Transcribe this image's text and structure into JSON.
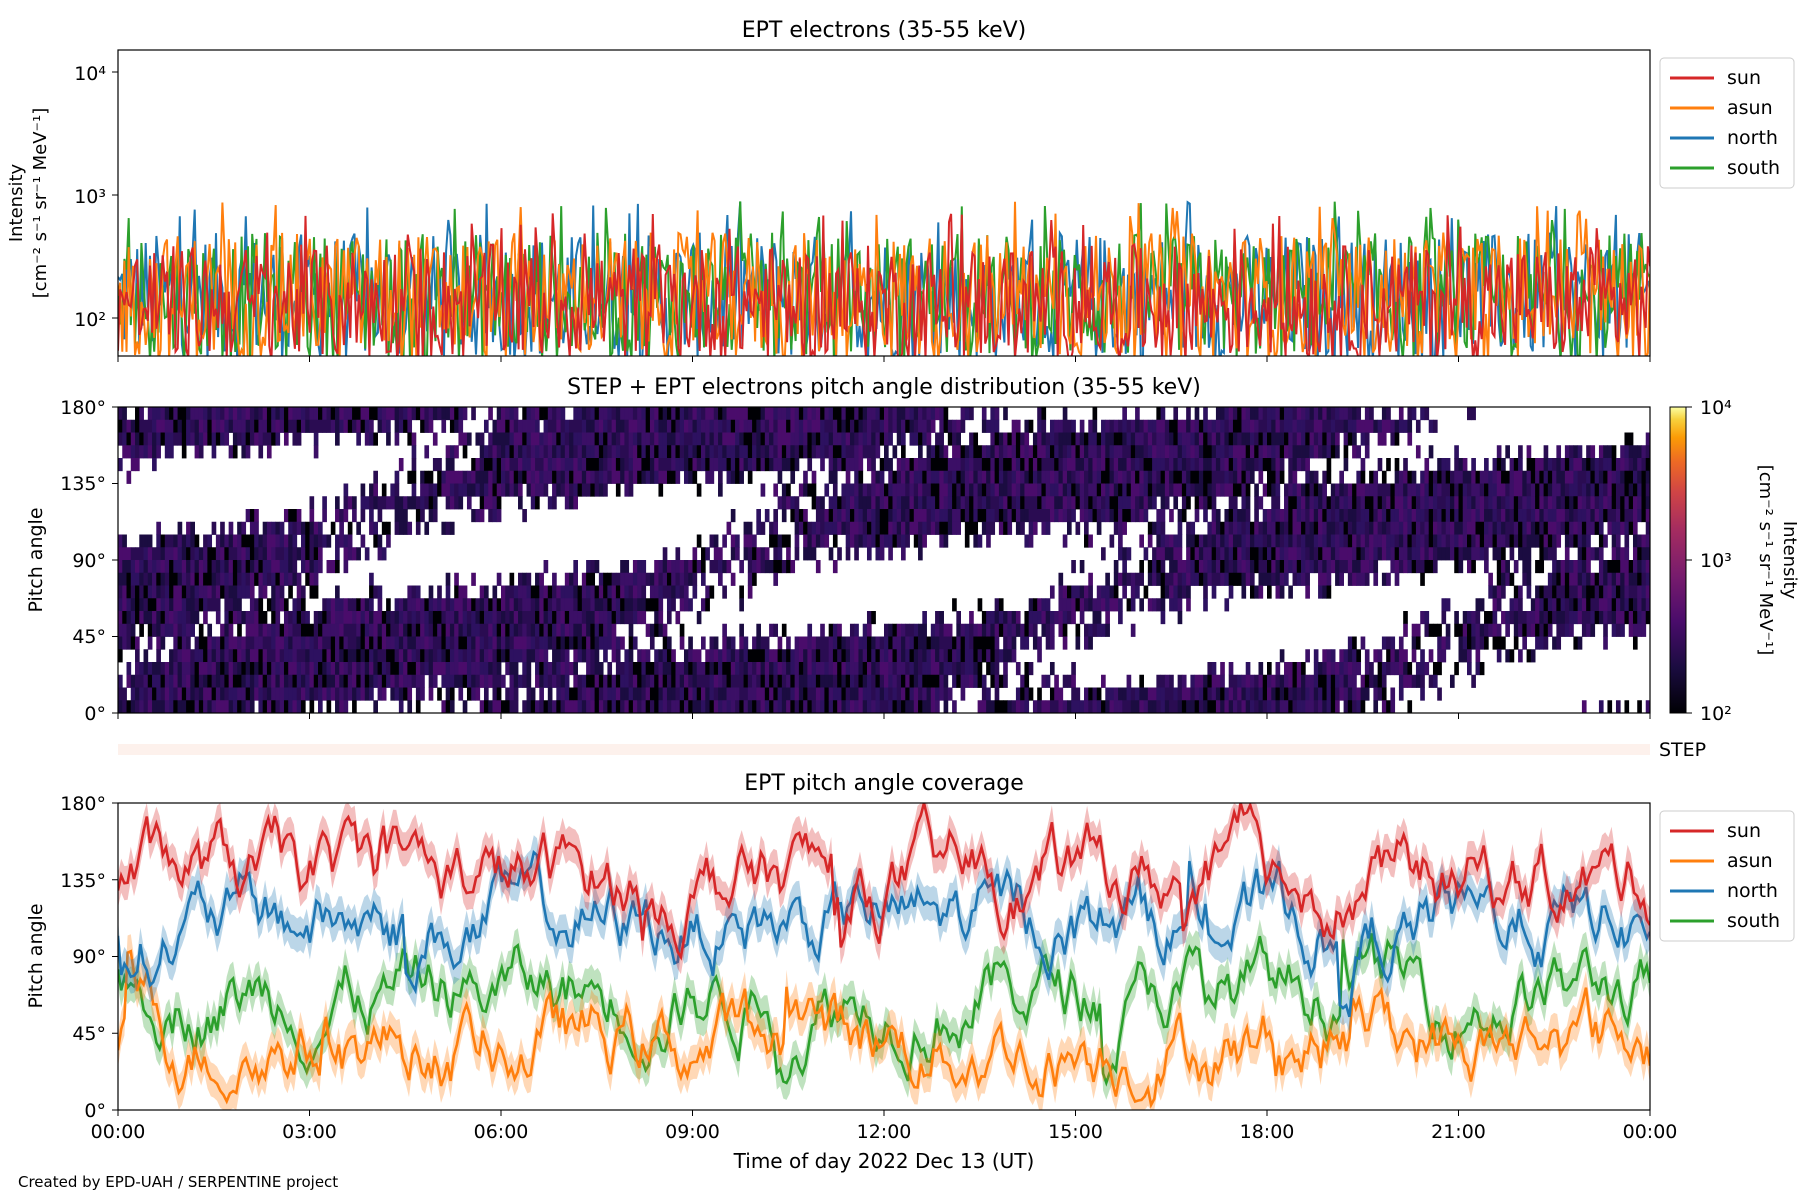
{
  "footer": "Created by EPD-UAH / SERPENTINE project",
  "xaxis": {
    "label": "Time of day 2022 Dec 13 (UT)",
    "ticks": [
      "00:00",
      "03:00",
      "06:00",
      "09:00",
      "12:00",
      "15:00",
      "18:00",
      "21:00",
      "00:00"
    ]
  },
  "colors": {
    "sun": "#d62728",
    "asun": "#ff7f0e",
    "north": "#1f77b4",
    "south": "#2ca02c"
  },
  "chart_data": [
    {
      "type": "line",
      "title": "EPT electrons (35-55 keV)",
      "ylabel_line1": "Intensity",
      "ylabel_line2": "[cm⁻² s⁻¹ sr⁻¹ MeV⁻¹]",
      "yscale": "log",
      "ylim": [
        50,
        15000
      ],
      "yticks": [
        "10²",
        "10³",
        "10⁴"
      ],
      "x_range_hours": [
        0,
        24
      ],
      "legend": "top-right outside",
      "series": [
        {
          "name": "sun",
          "typical_range": [
            50,
            400
          ]
        },
        {
          "name": "asun",
          "typical_range": [
            50,
            500
          ]
        },
        {
          "name": "north",
          "typical_range": [
            50,
            500
          ]
        },
        {
          "name": "south",
          "typical_range": [
            50,
            500
          ]
        }
      ]
    },
    {
      "type": "heatmap",
      "title": "STEP + EPT electrons pitch angle distribution (35-55 keV)",
      "ylabel": "Pitch angle",
      "ylim": [
        0,
        180
      ],
      "yticks": [
        "0°",
        "45°",
        "90°",
        "135°",
        "180°"
      ],
      "colorbar": {
        "label_line1": "Intensity",
        "label_line2": "[cm⁻² s⁻¹ sr⁻¹ MeV⁻¹]",
        "scale": "log",
        "range": [
          100,
          10000
        ],
        "ticks": [
          "10²",
          "10³",
          "10⁴"
        ]
      },
      "step_label": "STEP"
    },
    {
      "type": "line",
      "title": "EPT pitch angle coverage",
      "ylabel": "Pitch angle",
      "ylim": [
        0,
        180
      ],
      "yticks": [
        "0°",
        "45°",
        "90°",
        "135°",
        "180°"
      ],
      "legend": "top-right outside",
      "series": [
        {
          "name": "sun",
          "approx_mean": 135
        },
        {
          "name": "asun",
          "approx_mean": 40
        },
        {
          "name": "north",
          "approx_mean": 110
        },
        {
          "name": "south",
          "approx_mean": 70
        }
      ]
    }
  ]
}
